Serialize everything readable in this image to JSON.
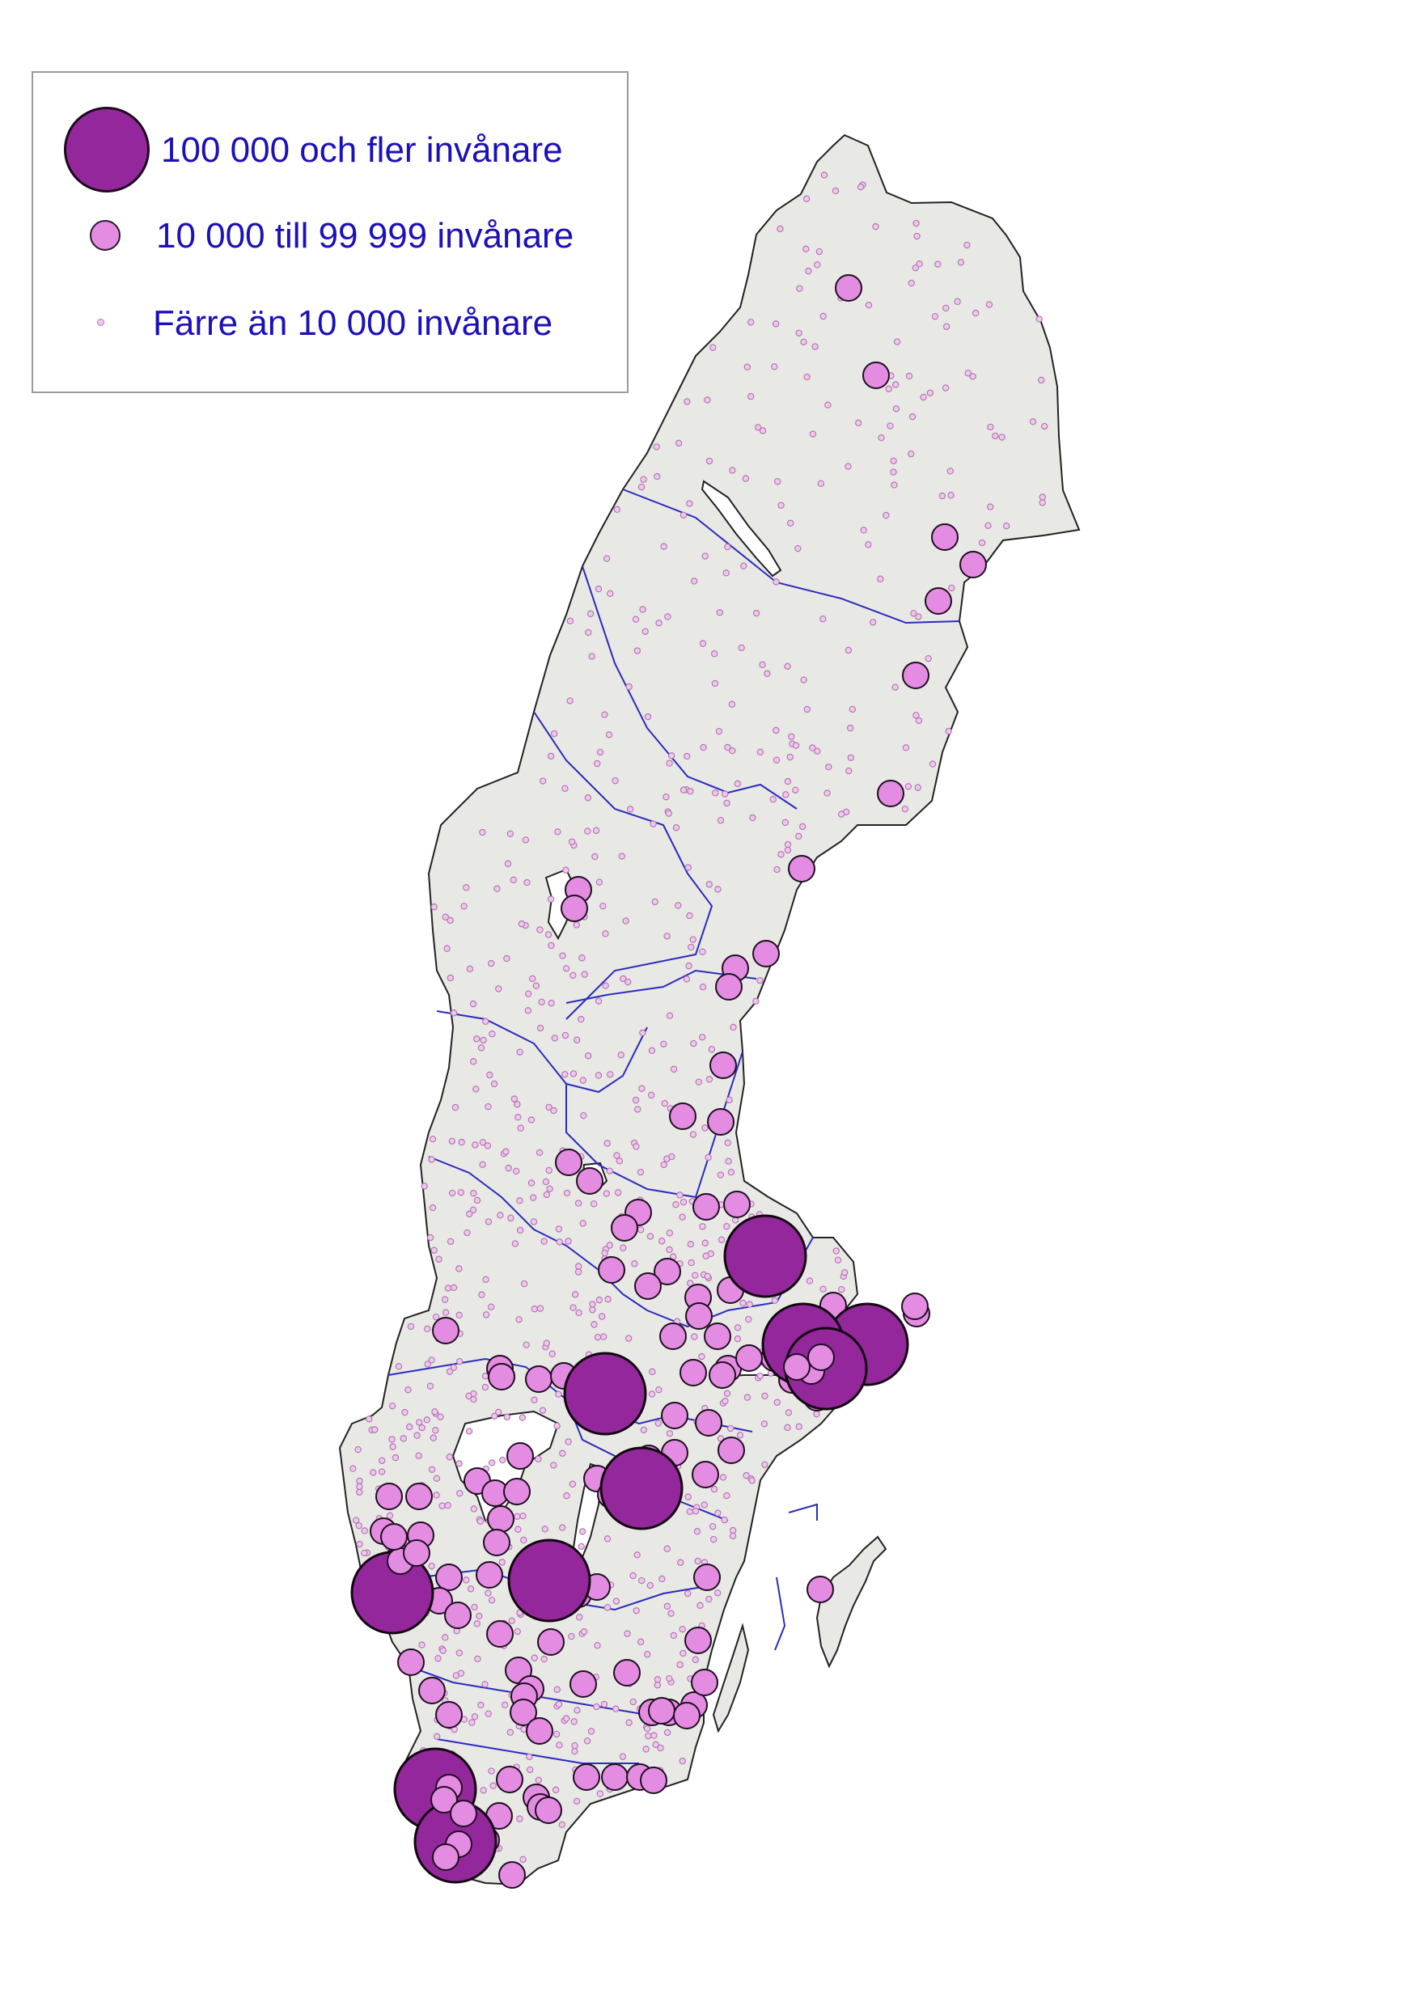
{
  "legend": {
    "large_label": "100 000 och fler invånare",
    "medium_label": "10 000 till 99 999 invånare",
    "small_label": "Färre än 10 000 invånare"
  },
  "colors": {
    "land": "#e8e8e4",
    "border": "#2b2bc0",
    "coast": "#222222",
    "large_fill": "#93279b",
    "medium_fill": "#e48be2",
    "small_fill": "#f3c6f1",
    "label": "#1c10b8"
  },
  "towns": {
    "large": [
      [
        946,
        1553
      ],
      [
        1072,
        1662
      ],
      [
        748,
        1723
      ],
      [
        793,
        1840
      ],
      [
        679,
        1954
      ],
      [
        485,
        1969
      ],
      [
        538,
        2212
      ],
      [
        563,
        2277
      ],
      [
        993,
        1662
      ],
      [
        1021,
        1692
      ]
    ],
    "medium": [
      [
        1049,
        356
      ],
      [
        1083,
        464
      ],
      [
        1168,
        664
      ],
      [
        1203,
        698
      ],
      [
        1160,
        743
      ],
      [
        1132,
        835
      ],
      [
        1101,
        981
      ],
      [
        991,
        1074
      ],
      [
        715,
        1100
      ],
      [
        947,
        1179
      ],
      [
        909,
        1197
      ],
      [
        901,
        1220
      ],
      [
        894,
        1317
      ],
      [
        844,
        1380
      ],
      [
        891,
        1387
      ],
      [
        703,
        1437
      ],
      [
        911,
        1489
      ],
      [
        873,
        1492
      ],
      [
        789,
        1499
      ],
      [
        772,
        1518
      ],
      [
        756,
        1570
      ],
      [
        825,
        1572
      ],
      [
        801,
        1590
      ],
      [
        863,
        1604
      ],
      [
        903,
        1595
      ],
      [
        864,
        1627
      ],
      [
        832,
        1652
      ],
      [
        887,
        1652
      ],
      [
        551,
        1645
      ],
      [
        618,
        1692
      ],
      [
        620,
        1702
      ],
      [
        666,
        1705
      ],
      [
        697,
        1701
      ],
      [
        900,
        1692
      ],
      [
        857,
        1697
      ],
      [
        755,
        1725
      ],
      [
        834,
        1750
      ],
      [
        876,
        1759
      ],
      [
        904,
        1793
      ],
      [
        1030,
        1614
      ],
      [
        1029,
        1660
      ],
      [
        643,
        1800
      ],
      [
        590,
        1831
      ],
      [
        612,
        1846
      ],
      [
        639,
        1844
      ],
      [
        802,
        1803
      ],
      [
        834,
        1796
      ],
      [
        872,
        1823
      ],
      [
        738,
        1828
      ],
      [
        764,
        1822
      ],
      [
        755,
        1848
      ],
      [
        619,
        1878
      ],
      [
        614,
        1907
      ],
      [
        481,
        1850
      ],
      [
        518,
        1850
      ],
      [
        474,
        1893
      ],
      [
        520,
        1898
      ],
      [
        494,
        1926
      ],
      [
        507,
        1957
      ],
      [
        555,
        1950
      ],
      [
        605,
        1947
      ],
      [
        488,
        1933
      ],
      [
        504,
        1941
      ],
      [
        519,
        1973
      ],
      [
        543,
        1979
      ],
      [
        487,
        1991
      ],
      [
        566,
        1997
      ],
      [
        715,
        1971
      ],
      [
        738,
        1962
      ],
      [
        874,
        1950
      ],
      [
        618,
        2020
      ],
      [
        681,
        2030
      ],
      [
        508,
        2055
      ],
      [
        534,
        2090
      ],
      [
        555,
        2120
      ],
      [
        641,
        2065
      ],
      [
        656,
        2088
      ],
      [
        721,
        2082
      ],
      [
        775,
        2068
      ],
      [
        648,
        2097
      ],
      [
        647,
        2117
      ],
      [
        806,
        2117
      ],
      [
        827,
        2117
      ],
      [
        858,
        2108
      ],
      [
        863,
        2028
      ],
      [
        818,
        2115
      ],
      [
        667,
        2140
      ],
      [
        1014,
        1965
      ],
      [
        871,
        2080
      ],
      [
        849,
        2121
      ],
      [
        630,
        2200
      ],
      [
        725,
        2197
      ],
      [
        760,
        2197
      ],
      [
        791,
        2197
      ],
      [
        808,
        2201
      ],
      [
        553,
        2185
      ],
      [
        537,
        2194
      ],
      [
        552,
        2210
      ],
      [
        663,
        2222
      ],
      [
        668,
        2234
      ],
      [
        678,
        2238
      ],
      [
        617,
        2245
      ],
      [
        566,
        2257
      ],
      [
        581,
        2257
      ],
      [
        590,
        2263
      ],
      [
        560,
        2292
      ],
      [
        573,
        2285
      ],
      [
        583,
        2293
      ],
      [
        601,
        2275
      ],
      [
        633,
        2318
      ],
      [
        710,
        1123
      ],
      [
        729,
        1460
      ],
      [
        1133,
        1624
      ],
      [
        1131,
        1615
      ],
      [
        1091,
        1638
      ],
      [
        1035,
        1693
      ],
      [
        1022,
        1708
      ],
      [
        979,
        1706
      ],
      [
        1010,
        1728
      ],
      [
        1048,
        1709
      ],
      [
        1066,
        1668
      ],
      [
        1060,
        1689
      ],
      [
        1006,
        1684
      ],
      [
        1004,
        1659
      ],
      [
        980,
        1658
      ],
      [
        960,
        1664
      ],
      [
        957,
        1679
      ],
      [
        926,
        1679
      ],
      [
        893,
        1700
      ]
    ],
    "small_count_note": ""
  }
}
